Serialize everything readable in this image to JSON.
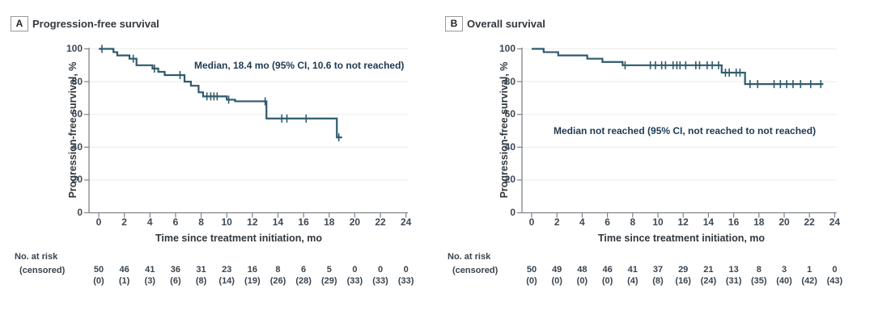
{
  "figure": {
    "panels": [
      {
        "label": "A",
        "title": "Progression-free survival",
        "annotation": "Median, 18.4 mo (95% CI, 10.6 to not reached)",
        "y_axis_label": "Progression-free survival, %",
        "x_axis_label": "Time since treatment initiation, mo",
        "risk_label_line1": "No. at risk",
        "risk_label_line2": "(censored)"
      },
      {
        "label": "B",
        "title": "Overall survival",
        "annotation": "Median not reached (95% CI, not reached to not reached)",
        "y_axis_label": "Progression-free survival, %",
        "x_axis_label": "Time since treatment initiation, mo",
        "risk_label_line1": "No. at risk",
        "risk_label_line2": "(censored)"
      }
    ]
  },
  "colors": {
    "curve": "#2f5a6d",
    "axis": "#808285",
    "grid": "#ebebe9",
    "tick_text": "#3c4856",
    "annotation_text": "#1e3a52"
  },
  "chart_data": [
    {
      "type": "line",
      "subtype": "kaplan-meier-step",
      "panel": "A",
      "title": "Progression-free survival",
      "annotation": "Median, 18.4 mo (95% CI, 10.6 to not reached)",
      "xlabel": "Time since treatment initiation, mo",
      "ylabel": "Progression-free survival, %",
      "xlim": [
        0,
        24
      ],
      "ylim": [
        0,
        100
      ],
      "xticks": [
        0,
        2,
        4,
        6,
        8,
        10,
        12,
        14,
        16,
        18,
        20,
        22,
        24
      ],
      "yticks": [
        0,
        20,
        40,
        60,
        80,
        100
      ],
      "grid": "horizontal",
      "legend": "none",
      "series": [
        {
          "name": "Progression-free survival",
          "step_points": [
            [
              0,
              100
            ],
            [
              1.15,
              98
            ],
            [
              1.45,
              96
            ],
            [
              2.4,
              94
            ],
            [
              2.95,
              90
            ],
            [
              4.2,
              88
            ],
            [
              4.65,
              86
            ],
            [
              5.15,
              84
            ],
            [
              6.7,
              80
            ],
            [
              7.2,
              77.5
            ],
            [
              7.8,
              73.5
            ],
            [
              8.15,
              71
            ],
            [
              10.0,
              69
            ],
            [
              10.65,
              68
            ],
            [
              13.1,
              57.5
            ],
            [
              18.6,
              46
            ]
          ],
          "end_time": 19.0,
          "censor_marks": [
            [
              0.25,
              100
            ],
            [
              2.7,
              94
            ],
            [
              4.35,
              88
            ],
            [
              6.35,
              84
            ],
            [
              8.45,
              71
            ],
            [
              8.75,
              71
            ],
            [
              9.0,
              71
            ],
            [
              9.25,
              71
            ],
            [
              10.15,
              69
            ],
            [
              13.0,
              68
            ],
            [
              14.3,
              57.5
            ],
            [
              14.7,
              57.5
            ],
            [
              16.2,
              57.5
            ],
            [
              18.75,
              46
            ]
          ]
        }
      ],
      "risk_table": {
        "times": [
          0,
          2,
          4,
          6,
          8,
          10,
          12,
          14,
          16,
          18,
          20,
          22,
          24
        ],
        "at_risk": [
          "50",
          "46",
          "41",
          "36",
          "31",
          "23",
          "16",
          "8",
          "6",
          "5",
          "0",
          "0",
          "0"
        ],
        "censored": [
          "(0)",
          "(1)",
          "(3)",
          "(6)",
          "(8)",
          "(14)",
          "(19)",
          "(26)",
          "(28)",
          "(29)",
          "(33)",
          "(33)",
          "(33)"
        ]
      }
    },
    {
      "type": "line",
      "subtype": "kaplan-meier-step",
      "panel": "B",
      "title": "Overall survival",
      "annotation": "Median not reached (95% CI, not reached to not reached)",
      "xlabel": "Time since treatment initiation, mo",
      "ylabel": "Progression-free survival, %",
      "xlim": [
        0,
        24
      ],
      "ylim": [
        0,
        100
      ],
      "xticks": [
        0,
        2,
        4,
        6,
        8,
        10,
        12,
        14,
        16,
        18,
        20,
        22,
        24
      ],
      "yticks": [
        0,
        20,
        40,
        60,
        80,
        100
      ],
      "grid": "horizontal",
      "legend": "none",
      "series": [
        {
          "name": "Overall survival",
          "step_points": [
            [
              0,
              100
            ],
            [
              0.95,
              98
            ],
            [
              2.1,
              96
            ],
            [
              4.4,
              94
            ],
            [
              5.6,
              92
            ],
            [
              7.2,
              90
            ],
            [
              15.05,
              85.5
            ],
            [
              16.9,
              78.5
            ]
          ],
          "end_time": 23.1,
          "censor_marks": [
            [
              7.4,
              90
            ],
            [
              9.4,
              90
            ],
            [
              9.8,
              90
            ],
            [
              10.3,
              90
            ],
            [
              10.6,
              90
            ],
            [
              11.2,
              90
            ],
            [
              11.5,
              90
            ],
            [
              11.75,
              90
            ],
            [
              12.2,
              90
            ],
            [
              13.0,
              90
            ],
            [
              13.3,
              90
            ],
            [
              13.9,
              90
            ],
            [
              14.3,
              90
            ],
            [
              14.8,
              90
            ],
            [
              15.35,
              85.5
            ],
            [
              15.65,
              85.5
            ],
            [
              16.2,
              85.5
            ],
            [
              16.5,
              85.5
            ],
            [
              17.3,
              78.5
            ],
            [
              17.9,
              78.5
            ],
            [
              19.2,
              78.5
            ],
            [
              19.7,
              78.5
            ],
            [
              20.2,
              78.5
            ],
            [
              20.7,
              78.5
            ],
            [
              21.3,
              78.5
            ],
            [
              22.1,
              78.5
            ],
            [
              22.9,
              78.5
            ]
          ]
        }
      ],
      "risk_table": {
        "times": [
          0,
          2,
          4,
          6,
          8,
          10,
          12,
          14,
          16,
          18,
          20,
          22,
          24
        ],
        "at_risk": [
          "50",
          "49",
          "48",
          "46",
          "41",
          "37",
          "29",
          "21",
          "13",
          "8",
          "3",
          "1",
          "0"
        ],
        "censored": [
          "(0)",
          "(0)",
          "(0)",
          "(0)",
          "(4)",
          "(8)",
          "(16)",
          "(24)",
          "(31)",
          "(35)",
          "(40)",
          "(42)",
          "(43)"
        ]
      }
    }
  ]
}
